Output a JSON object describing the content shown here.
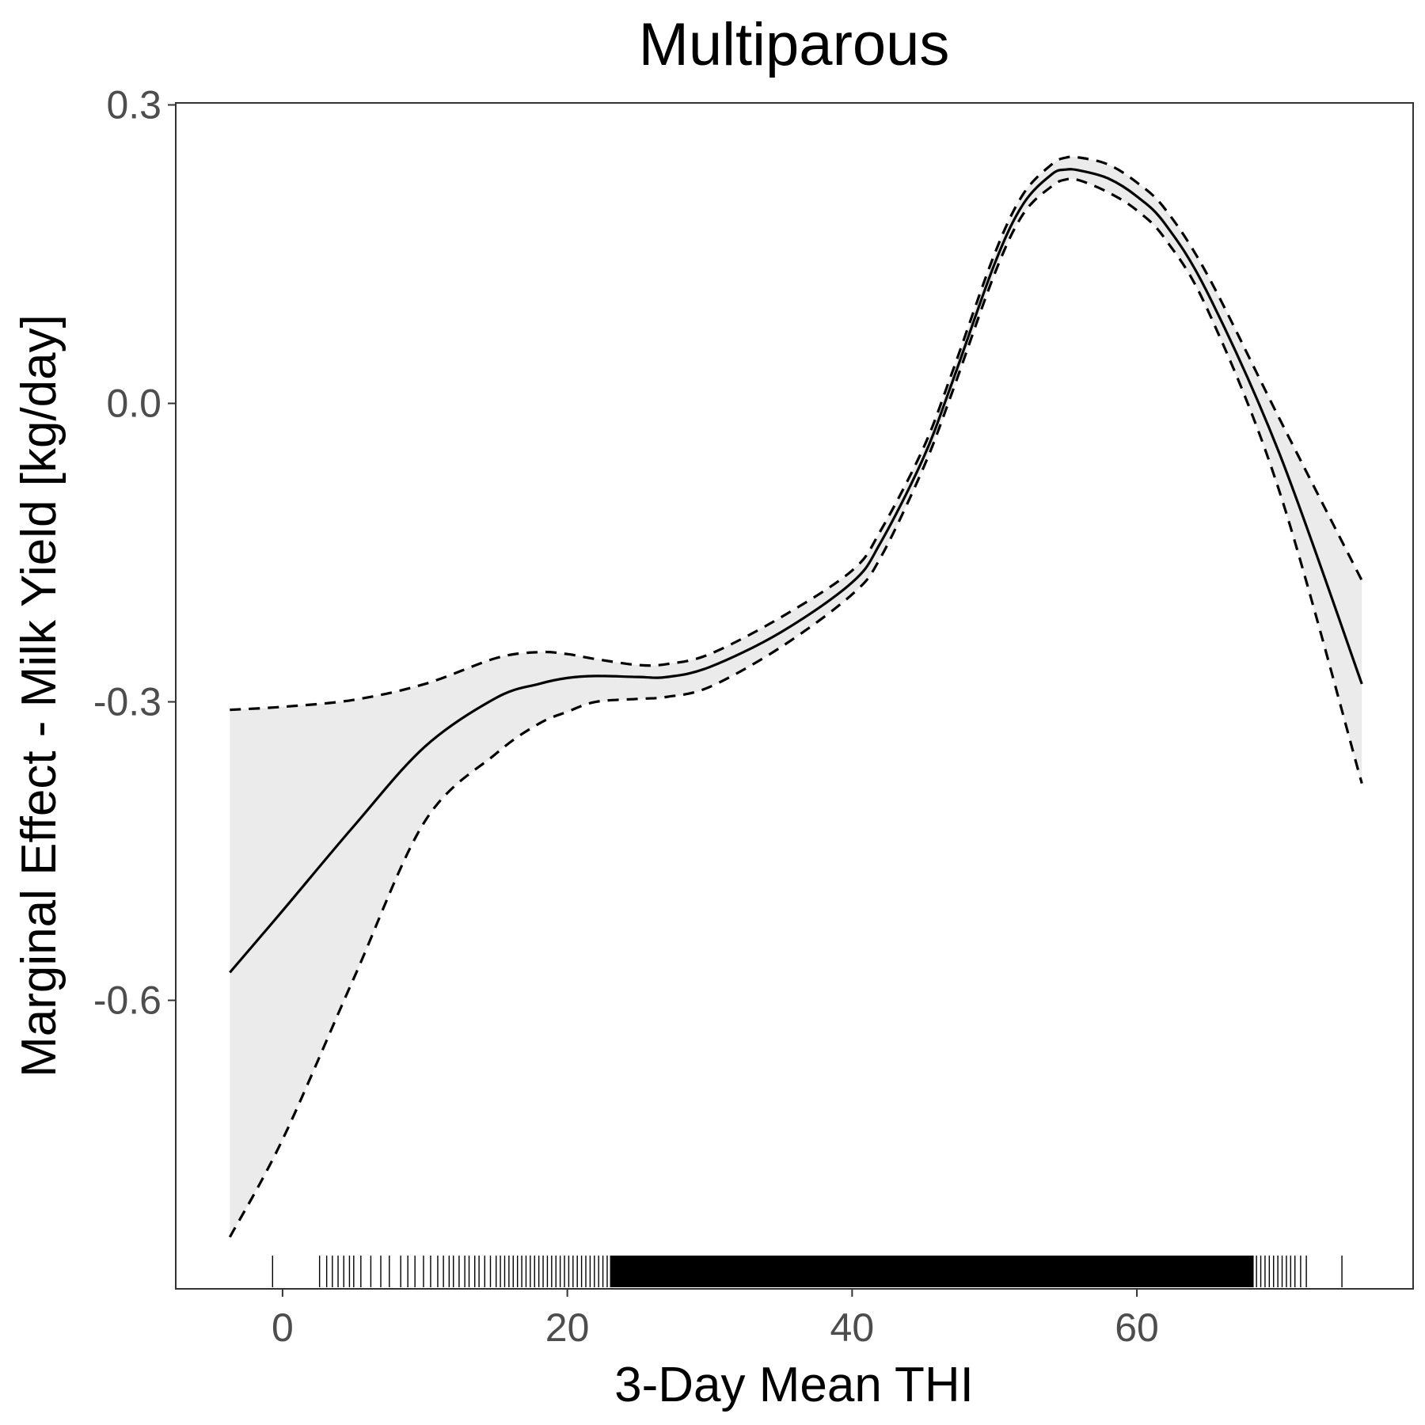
{
  "chart_data": {
    "type": "line",
    "title": "Multiparous",
    "xlabel": "3-Day Mean THI",
    "ylabel": "Marginal Effect - Milk Yield [kg/day]",
    "xlim": [
      -7.5,
      79.4
    ],
    "ylim": [
      -0.89,
      0.302
    ],
    "x_ticks": [
      0,
      20,
      40,
      60
    ],
    "x_tick_labels": [
      "0",
      "20",
      "40",
      "60"
    ],
    "y_ticks": [
      0.3,
      0.0,
      -0.3,
      -0.6
    ],
    "y_tick_labels": [
      "0.3",
      "0.0",
      "-0.3",
      "-0.6"
    ],
    "grid": false,
    "series": [
      {
        "role": "estimate",
        "style": "solid",
        "color": "#000000",
        "x": [
          -3.7,
          0,
          5,
          10,
          15,
          18,
          20,
          22,
          25,
          27,
          30,
          35,
          40,
          42,
          45,
          47,
          50,
          52,
          54,
          55,
          56,
          58,
          60,
          62,
          65,
          70,
          75.8
        ],
        "y": [
          -0.572,
          -0.51,
          -0.425,
          -0.345,
          -0.296,
          -0.282,
          -0.276,
          -0.274,
          -0.275,
          -0.275,
          -0.265,
          -0.23,
          -0.18,
          -0.14,
          -0.055,
          0.02,
          0.14,
          0.2,
          0.23,
          0.235,
          0.234,
          0.226,
          0.208,
          0.18,
          0.11,
          -0.05,
          -0.282
        ]
      },
      {
        "role": "upper-ci",
        "style": "dashed",
        "color": "#000000",
        "x": [
          -3.7,
          0,
          5,
          10,
          15,
          18,
          20,
          22,
          25,
          27,
          30,
          35,
          40,
          42,
          45,
          47,
          50,
          52,
          54,
          55,
          56,
          58,
          60,
          62,
          65,
          70,
          75.8
        ],
        "y": [
          -0.308,
          -0.305,
          -0.298,
          -0.282,
          -0.256,
          -0.25,
          -0.252,
          -0.257,
          -0.263,
          -0.262,
          -0.252,
          -0.215,
          -0.168,
          -0.128,
          -0.045,
          0.03,
          0.15,
          0.21,
          0.24,
          0.247,
          0.247,
          0.24,
          0.222,
          0.195,
          0.128,
          -0.015,
          -0.178
        ]
      },
      {
        "role": "lower-ci",
        "style": "dashed",
        "color": "#000000",
        "x": [
          -3.7,
          0,
          5,
          10,
          15,
          18,
          20,
          22,
          25,
          27,
          30,
          35,
          40,
          42,
          45,
          47,
          50,
          52,
          54,
          55,
          56,
          58,
          60,
          62,
          65,
          70,
          75.8
        ],
        "y": [
          -0.838,
          -0.74,
          -0.578,
          -0.42,
          -0.352,
          -0.322,
          -0.31,
          -0.3,
          -0.297,
          -0.295,
          -0.285,
          -0.245,
          -0.192,
          -0.155,
          -0.065,
          0.01,
          0.13,
          0.19,
          0.218,
          0.225,
          0.224,
          0.212,
          0.194,
          0.165,
          0.093,
          -0.088,
          -0.382
        ]
      }
    ],
    "confidence_band": {
      "fill": "#ebebeb"
    },
    "rug": {
      "x": [
        -0.7,
        2.6,
        3.1,
        3.5,
        3.9,
        4.3,
        4.7,
        5.0,
        5.5,
        6.2,
        6.9,
        7.5,
        8.3,
        8.8,
        9.3,
        9.9,
        10.4,
        10.9,
        11.3,
        11.7,
        12.0,
        12.4,
        12.8,
        13.1,
        13.5,
        13.8,
        14.2,
        14.6,
        15.0,
        15.3,
        15.6,
        15.9,
        16.2,
        16.5,
        16.8,
        17.1,
        17.4,
        17.7,
        18.0,
        18.3,
        18.6,
        18.9,
        19.2,
        19.5,
        19.8,
        20.1,
        20.4,
        20.7,
        21.0,
        21.3,
        21.6,
        21.9,
        22.2,
        22.5,
        22.8,
        68.4,
        68.7,
        69.0,
        69.3,
        69.6,
        69.9,
        70.2,
        70.5,
        70.8,
        71.1,
        71.5,
        71.9,
        74.4
      ],
      "dense_range": [
        23.0,
        68.2
      ]
    }
  }
}
